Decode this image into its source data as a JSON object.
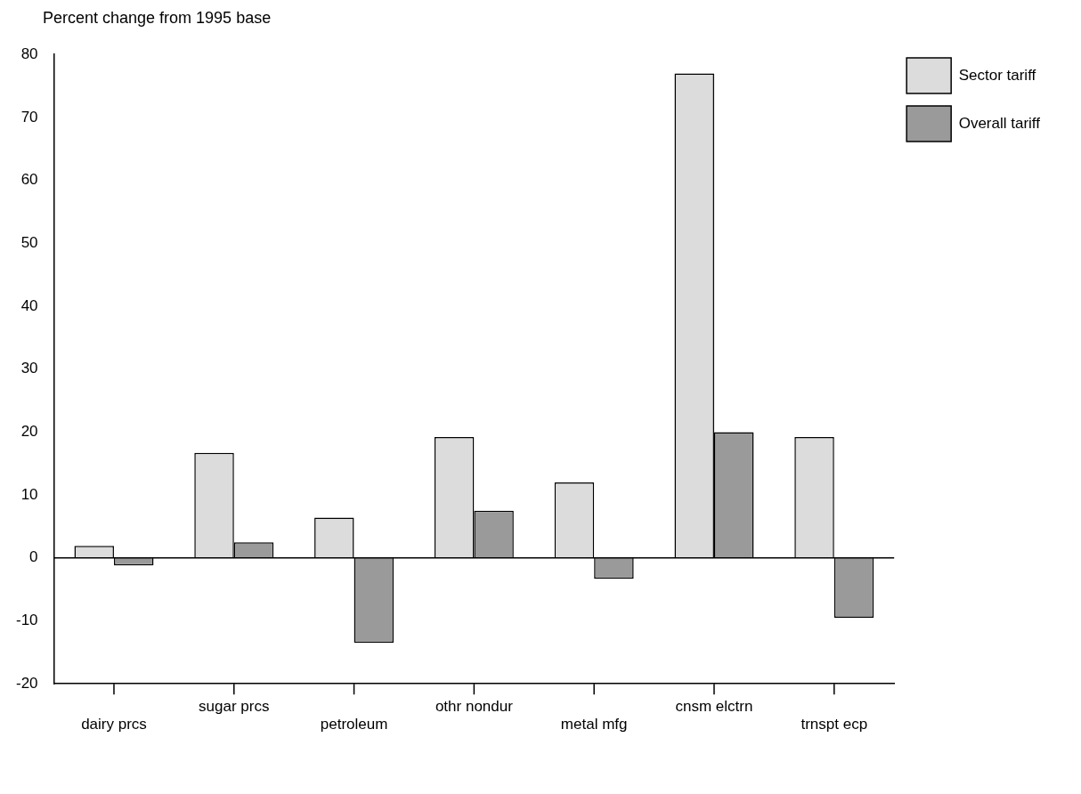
{
  "chart_data": {
    "type": "bar",
    "ylabel": "Percent change from 1995 base",
    "categories": [
      "dairy prcs",
      "sugar prcs",
      "petroleum",
      "othr nondur",
      "metal mfg",
      "cnsm elctrn",
      "trnspt ecp"
    ],
    "series": [
      {
        "name": "Sector tariff",
        "color": "#dcdcdc",
        "values": [
          1.9,
          16.7,
          6.4,
          19.2,
          12,
          77,
          19.2
        ]
      },
      {
        "name": "Overall tariff",
        "color": "#9a9a9a",
        "values": [
          -1.2,
          2.5,
          -13.5,
          7.5,
          -3.3,
          20,
          -9.5
        ]
      }
    ],
    "ylim": [
      -20,
      80
    ],
    "yticks": [
      -20,
      -10,
      0,
      10,
      20,
      30,
      40,
      50,
      60,
      70,
      80
    ],
    "ref_lines": [
      {
        "axis": "y",
        "value": 0
      }
    ],
    "grid": false,
    "legend": "top right"
  }
}
